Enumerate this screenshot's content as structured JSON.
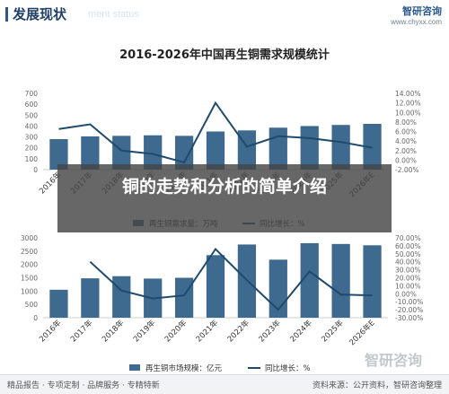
{
  "header": {
    "title": "发展现状",
    "subtitle": "ment status",
    "logo_name": "智研咨询",
    "logo_url": "www.chyxx.com"
  },
  "banner": {
    "text": "铜的走势和分析的简单介绍"
  },
  "footer": {
    "left": "精品报告 · 专项定制 · 品牌服务 · 专精特新",
    "right": "资料来源：公开资料，智研咨询整理"
  },
  "watermark": "智研咨询",
  "colors": {
    "bar": "#3e6a90",
    "line": "#1f4a6e",
    "axis_text": "#666666"
  },
  "chart_data": [
    {
      "type": "bar",
      "title": "2016-2026年中国再生铜需求规模统计",
      "categories": [
        "2016年",
        "2017年",
        "2018年",
        "2019年",
        "2020年",
        "2021年",
        "2022年",
        "2023年",
        "2024年",
        "2025年",
        "2026年E"
      ],
      "series": [
        {
          "name": "再生铜需求量：万吨",
          "type": "bar",
          "axis": "left",
          "values": [
            280,
            305,
            310,
            315,
            310,
            350,
            360,
            385,
            400,
            410,
            420
          ]
        },
        {
          "name": "同比增长：%",
          "type": "line",
          "axis": "right",
          "values": [
            6.5,
            7.5,
            2.0,
            1.3,
            -0.5,
            12.0,
            2.8,
            5.0,
            4.6,
            3.8,
            2.6
          ]
        }
      ],
      "ylim_left": [
        0,
        700
      ],
      "yticks_left": [
        0,
        100,
        200,
        300,
        400,
        500,
        600,
        700
      ],
      "ylim_right": [
        -2,
        14
      ],
      "yticks_right": [
        "-2.00%",
        "0.00%",
        "2.00%",
        "4.00%",
        "6.00%",
        "8.00%",
        "10.00%",
        "12.00%",
        "14.00%"
      ],
      "legend": [
        "再生铜需求量：万吨",
        "同比增长：%"
      ],
      "legend_position": "bottom"
    },
    {
      "type": "bar",
      "title": "",
      "categories": [
        "2016年",
        "2017年",
        "2018年",
        "2019年",
        "2020年",
        "2021年",
        "2022年",
        "2023年",
        "2024年",
        "2025年",
        "2026年E"
      ],
      "series": [
        {
          "name": "再生铜市场规模：亿元",
          "type": "bar",
          "axis": "left",
          "values": [
            1050,
            1480,
            1560,
            1470,
            1500,
            2350,
            2750,
            2180,
            2800,
            2770,
            2720
          ]
        },
        {
          "name": "同比增长：%",
          "type": "line",
          "axis": "right",
          "values": [
            null,
            40,
            4,
            -6,
            -2,
            56,
            17,
            -20,
            28,
            -1,
            -2
          ]
        }
      ],
      "ylim_left": [
        0,
        3000
      ],
      "yticks_left": [
        0,
        500,
        1000,
        1500,
        2000,
        2500,
        3000
      ],
      "ylim_right": [
        -30,
        70
      ],
      "yticks_right": [
        "-30.00%",
        "-20.00%",
        "-10.00%",
        "0.00%",
        "10.00%",
        "20.00%",
        "30.00%",
        "40.00%",
        "50.00%",
        "60.00%",
        "70.00%"
      ],
      "legend": [
        "再生铜市场规模：亿元",
        "同比增长：%"
      ],
      "legend_position": "bottom"
    }
  ]
}
